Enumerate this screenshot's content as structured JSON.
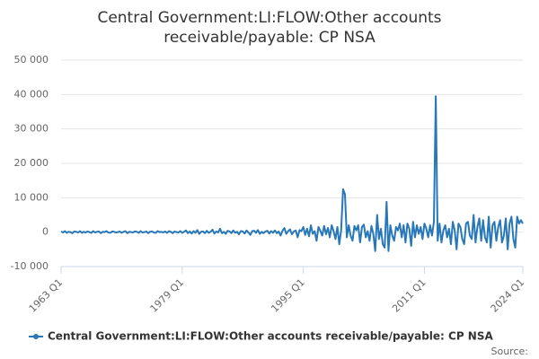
{
  "chart_data": {
    "type": "line",
    "title": "Central Government:LI:FLOW:Other accounts receivable/payable: CP NSA",
    "source_label": "Source:",
    "categories": [
      "1963 Q1",
      null,
      null,
      null,
      null,
      null,
      null,
      null,
      null,
      null,
      null,
      null,
      null,
      null,
      null,
      null,
      null,
      null,
      null,
      null,
      null,
      null,
      null,
      null,
      null,
      null,
      null,
      null,
      null,
      null,
      null,
      null,
      null,
      null,
      null,
      null,
      null,
      null,
      null,
      null,
      null,
      null,
      null,
      null,
      null,
      null,
      null,
      null,
      null,
      null,
      null,
      null,
      null,
      null,
      null,
      null,
      null,
      null,
      null,
      null,
      null,
      null,
      null,
      null,
      "1979 Q1",
      null,
      null,
      null,
      null,
      null,
      null,
      null,
      null,
      null,
      null,
      null,
      null,
      null,
      null,
      null,
      null,
      null,
      null,
      null,
      null,
      null,
      null,
      null,
      null,
      null,
      null,
      null,
      null,
      null,
      null,
      null,
      null,
      null,
      null,
      null,
      null,
      null,
      null,
      null,
      null,
      null,
      null,
      null,
      null,
      null,
      null,
      null,
      null,
      null,
      null,
      null,
      null,
      null,
      null,
      null,
      null,
      null,
      null,
      null,
      null,
      null,
      null,
      null,
      "1995 Q1",
      null,
      null,
      null,
      null,
      null,
      null,
      null,
      null,
      null,
      null,
      null,
      null,
      null,
      null,
      null,
      null,
      null,
      null,
      null,
      null,
      null,
      null,
      null,
      null,
      null,
      null,
      null,
      null,
      null,
      null,
      null,
      null,
      null,
      null,
      null,
      null,
      null,
      null,
      null,
      null,
      null,
      null,
      null,
      null,
      null,
      null,
      null,
      null,
      null,
      null,
      null,
      null,
      null,
      null,
      null,
      null,
      null,
      null,
      null,
      null,
      null,
      null,
      null,
      "2011 Q1",
      null,
      null,
      null,
      null,
      null,
      null,
      null,
      null,
      null,
      null,
      null,
      null,
      null,
      null,
      null,
      null,
      null,
      null,
      null,
      null,
      null,
      null,
      null,
      null,
      null,
      null,
      null,
      null,
      null,
      null,
      null,
      null,
      null,
      null,
      null,
      null,
      null,
      null,
      null,
      null,
      null,
      null,
      null,
      null,
      null,
      null,
      null,
      null,
      null,
      null,
      null,
      "2024 Q1"
    ],
    "series": [
      {
        "name": "Central Government:LI:FLOW:Other accounts receivable/payable: CP NSA",
        "color": "#2878b8",
        "values": [
          200,
          -100,
          300,
          -200,
          100,
          0,
          -300,
          200,
          100,
          -100,
          300,
          -200,
          100,
          -100,
          200,
          0,
          -200,
          300,
          -100,
          100,
          200,
          -300,
          100,
          0,
          300,
          -100,
          -200,
          200,
          100,
          -100,
          0,
          200,
          -200,
          100,
          300,
          -300,
          100,
          0,
          -100,
          200,
          100,
          -200,
          300,
          -100,
          0,
          200,
          -300,
          100,
          200,
          -100,
          -200,
          300,
          0,
          100,
          -100,
          200,
          -200,
          300,
          100,
          -300,
          200,
          0,
          -100,
          300,
          -200,
          100,
          500,
          -300,
          200,
          -400,
          300,
          -200,
          600,
          -500,
          100,
          200,
          -300,
          400,
          -200,
          100,
          700,
          -400,
          200,
          -100,
          1000,
          -300,
          100,
          -500,
          400,
          200,
          -300,
          500,
          -200,
          100,
          -600,
          300,
          200,
          -400,
          500,
          -100,
          -800,
          300,
          400,
          -200,
          600,
          -500,
          100,
          -300,
          200,
          400,
          -400,
          300,
          -200,
          500,
          -300,
          200,
          -1000,
          400,
          1200,
          -500,
          300,
          800,
          -600,
          200,
          500,
          -1500,
          600,
          300,
          1500,
          -800,
          1000,
          -1200,
          2000,
          -500,
          300,
          -2500,
          1500,
          400,
          -1000,
          1800,
          -600,
          1200,
          -1500,
          2000,
          300,
          -2000,
          1500,
          -3500,
          600,
          12500,
          11000,
          -1500,
          2000,
          -1000,
          -2500,
          1800,
          500,
          2000,
          -3000,
          1500,
          2200,
          -1500,
          300,
          -2500,
          1800,
          -500,
          -5500,
          5000,
          -2000,
          1000,
          -3500,
          -4500,
          8800,
          -5500,
          2000,
          -1000,
          -2500,
          1500,
          500,
          2500,
          -1500,
          2000,
          -3000,
          2500,
          1000,
          -4000,
          3000,
          -1500,
          2000,
          -500,
          1500,
          -2000,
          2500,
          1000,
          -1500,
          2000,
          -1000,
          3000,
          39500,
          -2500,
          2500,
          -3000,
          500,
          2000,
          -1500,
          1000,
          -3500,
          3000,
          500,
          -5000,
          2500,
          1500,
          -2000,
          -3500,
          2500,
          3000,
          -1000,
          -2000,
          5000,
          -3000,
          1500,
          4000,
          -2500,
          3500,
          -1500,
          -3000,
          4500,
          -4500,
          2000,
          3000,
          -2500,
          1500,
          3500,
          -3000,
          -1000,
          4000,
          -5000,
          2500,
          4500,
          -2000,
          -4500,
          4500,
          2500,
          3500,
          2500
        ]
      }
    ],
    "ylim": [
      -10000,
      50000
    ],
    "yticks": [
      {
        "value": -10000,
        "label": "-10 000"
      },
      0,
      {
        "value": 10000,
        "label": "10 000"
      },
      {
        "value": 20000,
        "label": "20 000"
      },
      {
        "value": 30000,
        "label": "30 000"
      },
      {
        "value": 40000,
        "label": "40 000"
      },
      {
        "value": 50000,
        "label": "50 000"
      }
    ],
    "grid": true
  }
}
